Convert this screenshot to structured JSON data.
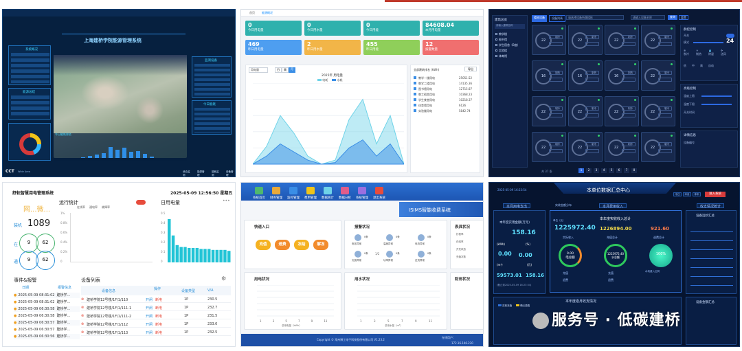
{
  "colors": {
    "accent_red": "#c0392b",
    "dark_blue": "#06203f",
    "cyan": "#3fd6ff"
  },
  "p1": {
    "title": "上海建桥学院能源管理系统",
    "logo": "CCT",
    "logo_sub": "Wide Area",
    "left_title": "系统概况",
    "left_title2": "能源总结",
    "right_title": "监测设备",
    "right_title2": "今日能耗",
    "bottom_left": "今日能耗排名",
    "bars": [
      0.05,
      0.1,
      0.18,
      0.25,
      0.55,
      0.4,
      0.5,
      0.3,
      0.35,
      0.2,
      0.08
    ],
    "bottom_links": [
      "综合监测",
      "能源管理",
      "能耗监测",
      "设备管理"
    ]
  },
  "p2": {
    "breadcrumb": "首页",
    "tab": "能源概况",
    "cards": [
      {
        "v": "0",
        "unit": "kWh",
        "l": "今日用电量"
      },
      {
        "v": "0",
        "unit": "m³",
        "l": "今日用水量"
      },
      {
        "v": "0",
        "unit": "kWh",
        "l": "今日用能"
      },
      {
        "v": "84608.04",
        "unit": "kWh",
        "l": "本月用电量"
      },
      {
        "v": "469",
        "unit": "kWh",
        "l": "昨日用电量"
      },
      {
        "v": "2",
        "unit": "m³",
        "l": "昨日用水量"
      },
      {
        "v": "455",
        "unit": "kWh",
        "l": "昨日用能"
      },
      {
        "v": "12",
        "unit": "个",
        "l": "报警数量"
      }
    ],
    "chart_title": "2025年 用电量",
    "legend": [
      "电耗",
      "水耗"
    ],
    "select": "用电量",
    "toggle": [
      "日",
      "周",
      "月"
    ],
    "rank_title": "全部建筑排名 (kWh)",
    "rank_btn": "导出",
    "rank": [
      {
        "n": "教学一楼用电",
        "v": "25051.52"
      },
      {
        "n": "教学二楼用电",
        "v": "14135.36"
      },
      {
        "n": "图书馆用电",
        "v": "12715.87"
      },
      {
        "n": "教工宿舍用电",
        "v": "10368.23"
      },
      {
        "n": "学生食堂用电",
        "v": "10218.37"
      },
      {
        "n": "体育馆用电",
        "v": "6126"
      },
      {
        "n": "实验楼用电",
        "v": "5842.74"
      }
    ],
    "chart_data": {
      "type": "area",
      "x": [
        1,
        2,
        3,
        4,
        5,
        6,
        7,
        8,
        9,
        10,
        11,
        12
      ],
      "series": [
        {
          "name": "电耗",
          "values": [
            0,
            22,
            60,
            38,
            10,
            0,
            5,
            55,
            80,
            25,
            60,
            0
          ]
        },
        {
          "name": "水耗",
          "values": [
            0,
            10,
            25,
            15,
            5,
            0,
            2,
            20,
            30,
            10,
            25,
            0
          ]
        }
      ],
      "ylim": [
        0,
        100
      ]
    }
  },
  "p3": {
    "tabs": [
      "楼栋设备",
      "设备列表"
    ],
    "search": "请选择设备所属楼栋",
    "search2": "请输入设备名称",
    "btn_search": "查询",
    "btn_reset": "重置",
    "tree_title": "建筑总览",
    "tree_sel": "请输入建筑名称",
    "tree": [
      "教学楼",
      "图书馆",
      "学生宿舍（B座）",
      "实验楼",
      "体育馆"
    ],
    "devices": [
      {
        "t": "22",
        "m": "制冷"
      },
      {
        "t": "22",
        "m": "制冷"
      },
      {
        "t": "22",
        "m": "制冷"
      },
      {
        "t": "22",
        "m": "制冷"
      },
      {
        "t": "16",
        "m": "制热"
      },
      {
        "t": "16",
        "m": "制热"
      },
      {
        "t": "16",
        "m": "制热"
      },
      {
        "t": "22",
        "m": "制冷"
      },
      {
        "t": "22",
        "m": "制冷"
      },
      {
        "t": "22",
        "m": "制冷"
      },
      {
        "t": "22",
        "m": "制冷"
      },
      {
        "t": "22",
        "m": "制冷"
      },
      {
        "t": "22",
        "m": "制冷"
      },
      {
        "t": "22",
        "m": "制冷"
      },
      {
        "t": "22",
        "m": "制冷"
      },
      {
        "t": "22",
        "m": "制冷"
      }
    ],
    "ctrl_title": "群控控制",
    "on_off": "开关",
    "mode": "模式",
    "temp": "24",
    "modes": [
      "制冷",
      "制热",
      "除湿",
      "送风"
    ],
    "wind": [
      "风速",
      "低",
      "中",
      "高",
      "自动"
    ],
    "adv_title": "高级控制",
    "adv": [
      "温度上限",
      "温度下限",
      "开关时间"
    ],
    "detail_title": "详情信息",
    "detail_code": "设备编号",
    "pager": "共 37 条",
    "pages": [
      "1",
      "2",
      "3",
      "4",
      "5",
      "6",
      "7",
      "8"
    ]
  },
  "p4": {
    "title": "舒耘智慧用电管理系统",
    "datetime": "2025-05-09 12:56:50 星期五",
    "brand": "网...微...",
    "install_label": "装机",
    "install": "1089",
    "online_label": "在",
    "online_a": "9",
    "online_b": "62",
    "comm_label": "通",
    "comm_a": "9",
    "comm_b": "62",
    "run_title": "运行统计",
    "run_legend": [
      "在线率",
      "通电率",
      "故障率"
    ],
    "run_y": [
      "1%",
      "0.8%",
      "0.6%",
      "0.4%",
      "0.2%",
      "0"
    ],
    "day_title": "日用电量",
    "day_y": [
      "0.5",
      "0.4",
      "0.3",
      "0.2",
      "0.1",
      "0"
    ],
    "day_bars": [
      0.45,
      0.28,
      0.18,
      0.16,
      0.16,
      0.15,
      0.15,
      0.15,
      0.14,
      0.14,
      0.14,
      0.13,
      0.13,
      0.13,
      0.13,
      0.12
    ],
    "evt_title": "事件&报警",
    "evt_cols": [
      "日期",
      "报警信息"
    ],
    "events": [
      {
        "d": "2025-05-09 08:31:02",
        "i": "建桥学..."
      },
      {
        "d": "2025-05-09 08:31:02",
        "i": "建桥学..."
      },
      {
        "d": "2025-05-09 06:30:58",
        "i": "建桥学..."
      },
      {
        "d": "2025-05-09 06:30:58",
        "i": "建桥学..."
      },
      {
        "d": "2025-05-09 06:30:57",
        "i": "建桥学..."
      },
      {
        "d": "2025-05-09 06:30:57",
        "i": "建桥学..."
      },
      {
        "d": "2025-05-09 06:30:56",
        "i": "建桥学..."
      }
    ],
    "dev_title": "设备列表",
    "dev_cols": [
      "设备信息",
      "操作",
      "设备类型",
      "V/A"
    ],
    "dev_ops": [
      "开闸",
      "断电"
    ],
    "devices": [
      {
        "n": "建桥学院12号楼/1F/1/110",
        "t": "1P",
        "v": "230.5"
      },
      {
        "n": "建桥学院12号楼/1F/1/111-1",
        "t": "1P",
        "v": "232.7"
      },
      {
        "n": "建桥学院12号楼/1F/1/111-2",
        "t": "1P",
        "v": "231.5"
      },
      {
        "n": "建桥学院12号楼/1F/1/112",
        "t": "1P",
        "v": "233.0"
      },
      {
        "n": "建桥学院12号楼/1F/1/113",
        "t": "1P",
        "v": "232.5"
      }
    ]
  },
  "p5": {
    "nav": [
      "系统首页",
      "财务管理",
      "监控管理",
      "费用管理",
      "数据统计",
      "数据分析",
      "系统管理",
      "退出系统"
    ],
    "title": "ISIMS智能收费系统",
    "quick_title": "快速入口",
    "quick": [
      "充值",
      "退费",
      "冻结",
      "解冻"
    ],
    "alarm_title": "报警状况",
    "alarms": [
      {
        "l": "电压异常",
        "v": "0条"
      },
      {
        "l": "温度异常",
        "v": "0条"
      },
      {
        "l": "电流异常",
        "v": "0条"
      },
      {
        "l": "欠费异常",
        "v": "0条"
      },
      {
        "l": "功率异常",
        "v": "0条"
      },
      {
        "l": "过流异常",
        "v": "0条"
      }
    ],
    "alarm_mid": "1/2",
    "meter_title": "表具状况",
    "meter_items": [
      "抄表率",
      "在线率",
      "开关状态",
      "充值次数"
    ],
    "elec_title": "用电状况",
    "water_title": "用水状况",
    "fin_title": "财务状况",
    "x_ticks": [
      "1",
      "3",
      "5",
      "7",
      "9",
      "11"
    ],
    "elec_x": "总用电量（kWh）",
    "water_x": "总用水量（m³）",
    "copyright": "Copyright © 常州博工电子科技股份有限公司 V1.23.2",
    "online": "在线用户：",
    "ip": "172.16.146.230"
  },
  "p6": {
    "title": "本单位数据汇总中心",
    "date": "2025-05-09 16:23:54",
    "tabs": [
      "今日",
      "本月",
      "本年"
    ],
    "login": "进入系统",
    "btn_a": "本月用电支出",
    "btn_b": "本月费用收入",
    "btn_c": "实收金额分布",
    "btn_d": "收支情况统计",
    "left_title": "本年度实用金额(万元)",
    "left_big": "158.16",
    "kwh": "0.00",
    "kwh_u": "(kWh)",
    "pct": "(%)",
    "m3": "0.00",
    "m3_u": "(m³)",
    "yuan": "0.00",
    "yuan_u": "(元)",
    "left_v1": "59573.01",
    "left_v2": "158.16",
    "left_note": "(截止到2025-05-09 16:23:54)",
    "mid_title": "本年度实收收入总计",
    "unit_lbl": "单位（元）",
    "m_v1": "1225972.40",
    "m_v2": "1226894.00",
    "m_v3": "921.60",
    "m_l1": "实际收入",
    "m_l2": "充值总计",
    "m_l3": "退费总计",
    "ring1": "0.00",
    "ring1_l": "电总额",
    "ring2": "1225972.40",
    "ring2_l": "水总额",
    "ring3": "100%",
    "ring3_l": "水电费入比例",
    "leg": [
      "充值",
      "退费"
    ],
    "bottom_title": "本年度逐月收支情况",
    "legend2": [
      "实收充值",
      "确认退费"
    ],
    "right_title": "设备远抄汇总",
    "right_title2": "设备金额汇总",
    "watermark": "服务号 · 低碳建桥"
  }
}
